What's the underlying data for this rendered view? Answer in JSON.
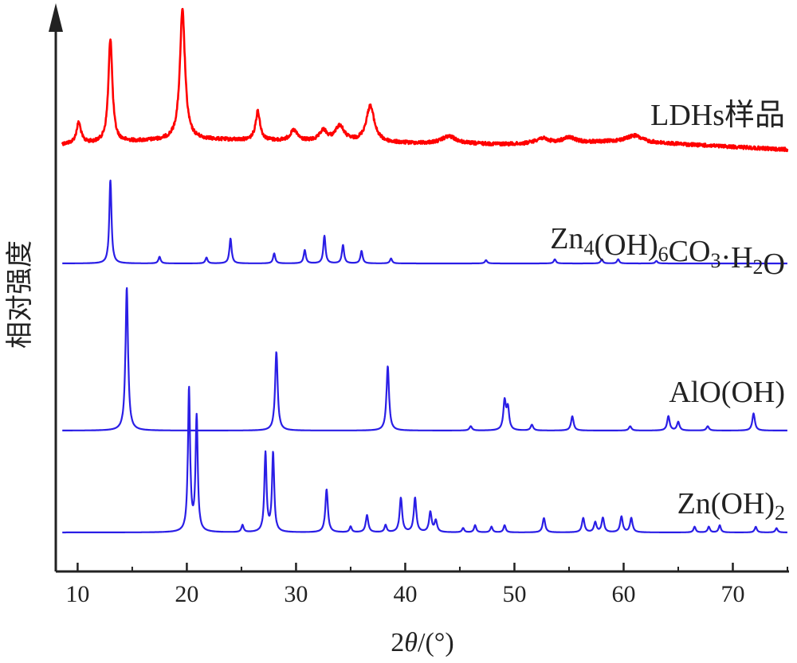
{
  "chart_data": {
    "type": "line",
    "xlabel": "2θ/(°)",
    "ylabel": "相对强度",
    "xlim": [
      8,
      75
    ],
    "xticks": [
      10,
      20,
      30,
      40,
      50,
      60,
      70
    ],
    "yticks": false,
    "grid": false,
    "colors": {
      "experimental": "#ff0000",
      "reference": "#2a1ee6",
      "axis": "#222222"
    },
    "series": [
      {
        "name": "LDHs样品",
        "label_main": "LDHs样品",
        "color": "#ff0000",
        "baseline": [
          [
            8.5,
            0.05
          ],
          [
            20,
            0.1
          ],
          [
            30,
            0.08
          ],
          [
            40,
            0.06
          ],
          [
            50,
            0.05
          ],
          [
            60,
            0.08
          ],
          [
            75,
            0.0
          ]
        ],
        "peaks": [
          [
            10.1,
            0.2,
            0.25
          ],
          [
            13.0,
            1.0,
            0.22
          ],
          [
            19.6,
            1.25,
            0.28
          ],
          [
            26.5,
            0.28,
            0.25
          ],
          [
            29.8,
            0.1,
            0.4
          ],
          [
            32.5,
            0.1,
            0.4
          ],
          [
            34.0,
            0.15,
            0.5
          ],
          [
            36.8,
            0.35,
            0.45
          ],
          [
            44.0,
            0.07,
            0.8
          ],
          [
            52.5,
            0.05,
            0.7
          ],
          [
            55.0,
            0.05,
            0.7
          ],
          [
            61.0,
            0.06,
            0.8
          ]
        ]
      },
      {
        "name": "Zn4(OH)6CO3·H2O",
        "label_main": "Zn",
        "label_parts": [
          [
            "Zn",
            false
          ],
          [
            "4",
            true
          ],
          [
            "(OH)",
            false
          ],
          [
            "6",
            true
          ],
          [
            "CO",
            false
          ],
          [
            "3",
            true
          ],
          [
            "·H",
            false
          ],
          [
            "2",
            true
          ],
          [
            "O",
            false
          ]
        ],
        "color": "#2a1ee6",
        "baseline": [
          [
            8.5,
            0
          ],
          [
            75,
            0
          ]
        ],
        "peaks": [
          [
            13.0,
            1.0,
            0.12
          ],
          [
            17.5,
            0.08,
            0.12
          ],
          [
            21.8,
            0.07,
            0.12
          ],
          [
            24.0,
            0.3,
            0.12
          ],
          [
            28.0,
            0.12,
            0.12
          ],
          [
            30.8,
            0.16,
            0.12
          ],
          [
            32.6,
            0.33,
            0.12
          ],
          [
            34.3,
            0.22,
            0.12
          ],
          [
            36.0,
            0.15,
            0.12
          ],
          [
            38.7,
            0.06,
            0.12
          ],
          [
            47.4,
            0.04,
            0.12
          ],
          [
            53.7,
            0.05,
            0.12
          ],
          [
            58.0,
            0.05,
            0.12
          ],
          [
            59.5,
            0.05,
            0.12
          ],
          [
            63.0,
            0.03,
            0.12
          ]
        ]
      },
      {
        "name": "AlO(OH)",
        "label_main": "AlO(OH)",
        "color": "#2a1ee6",
        "baseline": [
          [
            8.5,
            0
          ],
          [
            75,
            0
          ]
        ],
        "peaks": [
          [
            14.5,
            1.0,
            0.14
          ],
          [
            28.2,
            0.55,
            0.14
          ],
          [
            38.4,
            0.45,
            0.14
          ],
          [
            46.0,
            0.03,
            0.14
          ],
          [
            49.1,
            0.2,
            0.14
          ],
          [
            49.4,
            0.15,
            0.14
          ],
          [
            51.6,
            0.04,
            0.14
          ],
          [
            55.3,
            0.1,
            0.14
          ],
          [
            60.6,
            0.03,
            0.14
          ],
          [
            64.1,
            0.1,
            0.14
          ],
          [
            65.0,
            0.06,
            0.14
          ],
          [
            67.7,
            0.03,
            0.14
          ],
          [
            71.9,
            0.12,
            0.14
          ]
        ]
      },
      {
        "name": "Zn(OH)2",
        "label_main": "Zn(OH)",
        "label_parts": [
          [
            "Zn(OH)",
            false
          ],
          [
            "2",
            true
          ]
        ],
        "color": "#2a1ee6",
        "baseline": [
          [
            8.5,
            0
          ],
          [
            75,
            0
          ]
        ],
        "peaks": [
          [
            20.2,
            1.0,
            0.12
          ],
          [
            20.9,
            0.8,
            0.12
          ],
          [
            25.1,
            0.05,
            0.12
          ],
          [
            27.2,
            0.55,
            0.12
          ],
          [
            27.9,
            0.55,
            0.12
          ],
          [
            32.8,
            0.3,
            0.14
          ],
          [
            35.0,
            0.04,
            0.12
          ],
          [
            36.5,
            0.12,
            0.14
          ],
          [
            38.2,
            0.05,
            0.12
          ],
          [
            39.6,
            0.24,
            0.14
          ],
          [
            40.9,
            0.24,
            0.14
          ],
          [
            42.3,
            0.14,
            0.14
          ],
          [
            42.8,
            0.08,
            0.14
          ],
          [
            45.3,
            0.03,
            0.12
          ],
          [
            46.4,
            0.05,
            0.12
          ],
          [
            47.9,
            0.04,
            0.12
          ],
          [
            49.1,
            0.05,
            0.12
          ],
          [
            52.7,
            0.1,
            0.14
          ],
          [
            56.3,
            0.1,
            0.14
          ],
          [
            57.4,
            0.07,
            0.14
          ],
          [
            58.1,
            0.1,
            0.14
          ],
          [
            59.8,
            0.11,
            0.14
          ],
          [
            60.7,
            0.1,
            0.14
          ],
          [
            66.5,
            0.04,
            0.12
          ],
          [
            67.8,
            0.04,
            0.12
          ],
          [
            68.8,
            0.05,
            0.12
          ],
          [
            72.1,
            0.04,
            0.12
          ],
          [
            74.0,
            0.03,
            0.12
          ]
        ]
      }
    ]
  }
}
